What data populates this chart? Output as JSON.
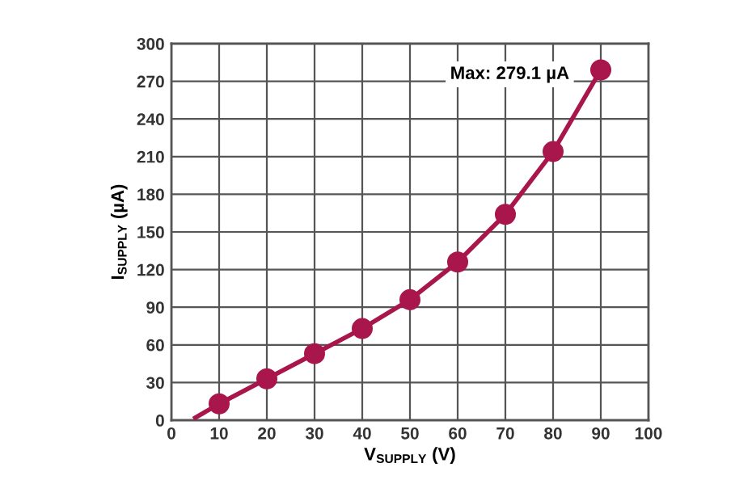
{
  "chart_data": {
    "type": "line",
    "xlabel": "V$_{SUPPLY}$ (V)",
    "ylabel": "I$_{SUPPLY}$ (µA)",
    "series": [
      {
        "color": "#a8164b",
        "marker": "none",
        "x": [
          5,
          10,
          20,
          30,
          40,
          50,
          60,
          70,
          80,
          90
        ],
        "values": [
          2,
          13,
          33,
          53,
          73,
          96,
          126,
          164,
          214,
          279.1
        ]
      },
      {
        "type": "scatter",
        "color": "#a8164b",
        "marker": "circle",
        "x": [
          10,
          20,
          30,
          40,
          50,
          60,
          70,
          80,
          90
        ],
        "values": [
          13,
          33,
          53,
          73,
          96,
          126,
          164,
          214,
          279.1
        ]
      }
    ],
    "annotations": [
      {
        "text": "Max: 279.1 µA",
        "x": 90,
        "y": 279.1
      }
    ],
    "xlim": [
      0,
      100
    ],
    "xticks": [
      0,
      10,
      20,
      30,
      40,
      50,
      60,
      70,
      80,
      90,
      100
    ],
    "ylim": [
      0,
      300
    ],
    "yticks": [
      0,
      30,
      60,
      90,
      120,
      150,
      180,
      210,
      240,
      270,
      300
    ],
    "grid": true,
    "legend": false
  }
}
